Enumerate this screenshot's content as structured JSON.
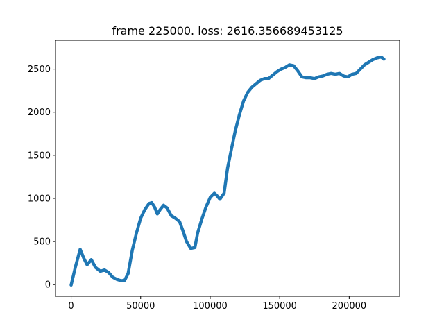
{
  "chart_data": {
    "type": "line",
    "title": "frame 225000. loss: 2616.356689453125",
    "xlabel": "",
    "ylabel": "",
    "xlim": [
      -11250,
      236250
    ],
    "ylim": [
      -135,
      2835
    ],
    "xticks": [
      0,
      50000,
      100000,
      150000,
      200000
    ],
    "xtick_labels": [
      "0",
      "50000",
      "100000",
      "150000",
      "200000"
    ],
    "yticks": [
      0,
      500,
      1000,
      1500,
      2000,
      2500
    ],
    "ytick_labels": [
      "0",
      "500",
      "1000",
      "1500",
      "2000",
      "2500"
    ],
    "grid": false,
    "legend": "none",
    "series": [
      {
        "color": "#1f77b4",
        "noise_band": 20,
        "x": [
          0,
          3000,
          6500,
          9000,
          11500,
          14500,
          17500,
          21000,
          24000,
          27000,
          30000,
          33000,
          36000,
          38500,
          41000,
          44000,
          47000,
          50000,
          53000,
          56000,
          58000,
          60000,
          62000,
          64000,
          66500,
          69000,
          72000,
          75000,
          78000,
          80500,
          83000,
          86000,
          89000,
          91000,
          94000,
          97000,
          100000,
          103000,
          105000,
          107000,
          110000,
          112500,
          115000,
          118000,
          121000,
          124000,
          127000,
          130000,
          133000,
          136000,
          139000,
          142000,
          145000,
          148000,
          151000,
          154000,
          157000,
          160000,
          163000,
          166000,
          169000,
          172000,
          175000,
          178000,
          181000,
          184000,
          187000,
          190000,
          193000,
          196000,
          199000,
          202000,
          205000,
          208000,
          211000,
          214000,
          217000,
          220000,
          223000,
          225000
        ],
        "y": [
          -5,
          200,
          410,
          310,
          230,
          290,
          200,
          155,
          170,
          140,
          85,
          60,
          45,
          50,
          130,
          400,
          600,
          770,
          870,
          940,
          950,
          900,
          820,
          870,
          920,
          890,
          800,
          770,
          730,
          620,
          500,
          420,
          430,
          600,
          760,
          900,
          1010,
          1060,
          1030,
          990,
          1060,
          1350,
          1550,
          1780,
          1970,
          2130,
          2230,
          2290,
          2330,
          2370,
          2390,
          2390,
          2430,
          2470,
          2500,
          2520,
          2550,
          2540,
          2480,
          2410,
          2400,
          2400,
          2390,
          2410,
          2420,
          2440,
          2450,
          2440,
          2450,
          2420,
          2410,
          2440,
          2450,
          2500,
          2550,
          2580,
          2610,
          2630,
          2640,
          2616
        ]
      }
    ]
  }
}
